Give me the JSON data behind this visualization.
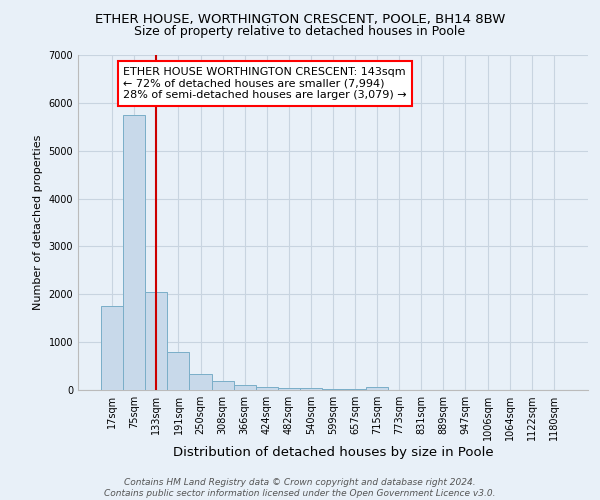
{
  "title": "ETHER HOUSE, WORTHINGTON CRESCENT, POOLE, BH14 8BW",
  "subtitle": "Size of property relative to detached houses in Poole",
  "xlabel": "Distribution of detached houses by size in Poole",
  "ylabel": "Number of detached properties",
  "categories": [
    "17sqm",
    "75sqm",
    "133sqm",
    "191sqm",
    "250sqm",
    "308sqm",
    "366sqm",
    "424sqm",
    "482sqm",
    "540sqm",
    "599sqm",
    "657sqm",
    "715sqm",
    "773sqm",
    "831sqm",
    "889sqm",
    "947sqm",
    "1006sqm",
    "1064sqm",
    "1122sqm",
    "1180sqm"
  ],
  "values": [
    1750,
    5750,
    2050,
    800,
    330,
    185,
    95,
    65,
    40,
    35,
    25,
    20,
    65,
    0,
    0,
    0,
    0,
    0,
    0,
    0,
    0
  ],
  "bar_color": "#c8d9ea",
  "bar_edge_color": "#7aaec8",
  "vline_x": 2,
  "vline_color": "#cc0000",
  "annotation_text": "ETHER HOUSE WORTHINGTON CRESCENT: 143sqm\n← 72% of detached houses are smaller (7,994)\n28% of semi-detached houses are larger (3,079) →",
  "annotation_box_color": "white",
  "annotation_box_edge_color": "red",
  "ylim": [
    0,
    7000
  ],
  "yticks": [
    0,
    1000,
    2000,
    3000,
    4000,
    5000,
    6000,
    7000
  ],
  "grid_color": "#c8d4e0",
  "background_color": "#e8f0f8",
  "plot_bg_color": "#e8f0f8",
  "footer": "Contains HM Land Registry data © Crown copyright and database right 2024.\nContains public sector information licensed under the Open Government Licence v3.0.",
  "title_fontsize": 9.5,
  "subtitle_fontsize": 9,
  "xlabel_fontsize": 9.5,
  "ylabel_fontsize": 8,
  "tick_fontsize": 7,
  "annotation_fontsize": 8,
  "footer_fontsize": 6.5
}
